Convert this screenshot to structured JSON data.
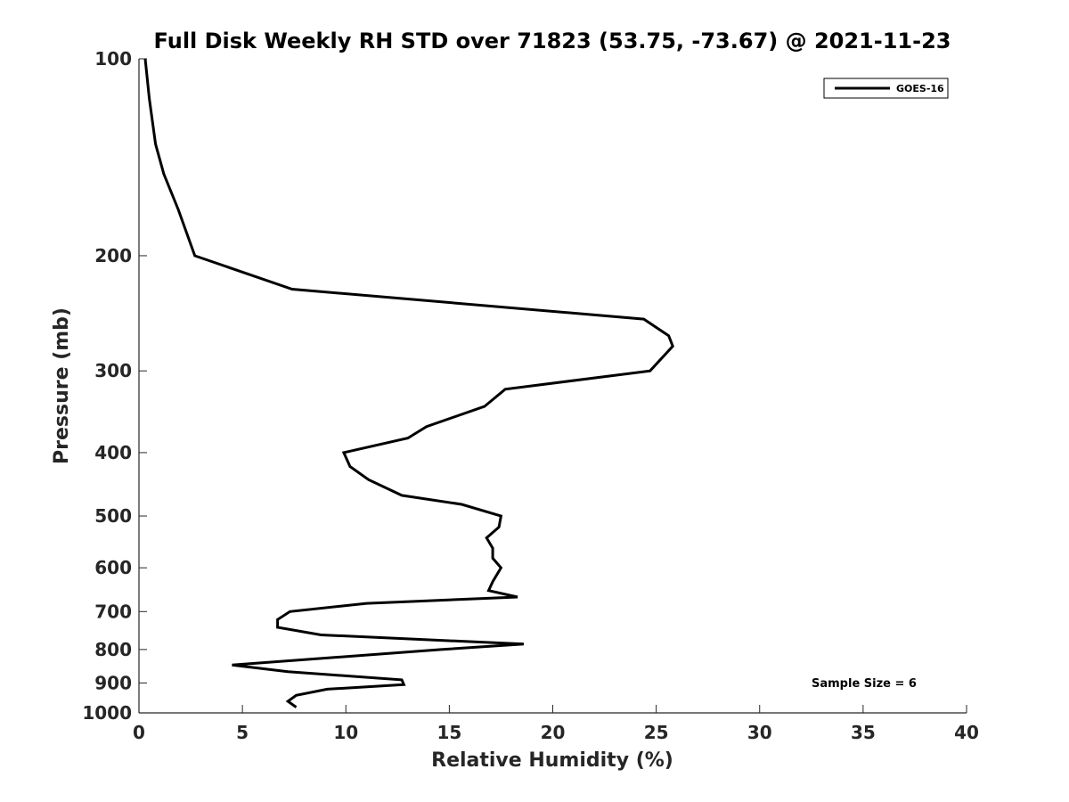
{
  "chart_data": {
    "type": "line",
    "title": "Full Disk Weekly RH STD over 71823 (53.75, -73.67) @ 2021-11-23",
    "xlabel": "Relative Humidity (%)",
    "ylabel": "Pressure (mb)",
    "xlim": [
      0,
      40
    ],
    "ylim": [
      100,
      1000
    ],
    "y_scale": "log",
    "y_reversed": true,
    "grid": false,
    "legend_position": "top-right",
    "x_ticks": [
      0,
      5,
      10,
      15,
      20,
      25,
      30,
      35,
      40
    ],
    "x_tick_labels": [
      "0",
      "5",
      "10",
      "15",
      "20",
      "25",
      "30",
      "35",
      "40"
    ],
    "y_ticks": [
      100,
      200,
      300,
      400,
      500,
      600,
      700,
      800,
      900,
      1000
    ],
    "y_tick_labels": [
      "100",
      "200",
      "300",
      "400",
      "500",
      "600",
      "700",
      "800",
      "900",
      "1000"
    ],
    "series": [
      {
        "name": "GOES-16",
        "color": "#000000",
        "points": [
          [
            0.3,
            100
          ],
          [
            0.5,
            115
          ],
          [
            0.8,
            135
          ],
          [
            1.2,
            150
          ],
          [
            1.9,
            170
          ],
          [
            2.7,
            200
          ],
          [
            7.4,
            225
          ],
          [
            24.4,
            250
          ],
          [
            25.6,
            265
          ],
          [
            25.8,
            275
          ],
          [
            24.7,
            300
          ],
          [
            17.7,
            320
          ],
          [
            16.7,
            340
          ],
          [
            13.9,
            365
          ],
          [
            13.0,
            380
          ],
          [
            9.9,
            400
          ],
          [
            10.2,
            420
          ],
          [
            11.1,
            440
          ],
          [
            12.7,
            465
          ],
          [
            15.6,
            480
          ],
          [
            17.5,
            500
          ],
          [
            17.4,
            520
          ],
          [
            16.8,
            540
          ],
          [
            17.1,
            560
          ],
          [
            17.1,
            580
          ],
          [
            17.5,
            600
          ],
          [
            17.1,
            630
          ],
          [
            16.9,
            650
          ],
          [
            18.3,
            665
          ],
          [
            11.0,
            680
          ],
          [
            7.3,
            700
          ],
          [
            6.7,
            720
          ],
          [
            6.7,
            740
          ],
          [
            8.8,
            760
          ],
          [
            18.6,
            785
          ],
          [
            14.6,
            800
          ],
          [
            4.5,
            845
          ],
          [
            7.2,
            865
          ],
          [
            12.7,
            890
          ],
          [
            12.8,
            905
          ],
          [
            9.1,
            920
          ],
          [
            7.6,
            940
          ],
          [
            7.2,
            960
          ],
          [
            7.6,
            980
          ]
        ]
      }
    ],
    "legend": [
      {
        "label": "GOES-16",
        "color": "#000000"
      }
    ],
    "annotations": [
      {
        "text": "Sample Size = 6",
        "x": 32.6,
        "y": 900
      }
    ]
  }
}
